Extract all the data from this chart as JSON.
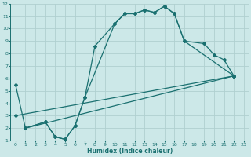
{
  "xlabel": "Humidex (Indice chaleur)",
  "xlim": [
    -0.5,
    23.5
  ],
  "ylim": [
    1,
    12
  ],
  "xticks": [
    0,
    1,
    2,
    3,
    4,
    5,
    6,
    7,
    8,
    9,
    10,
    11,
    12,
    13,
    14,
    15,
    16,
    17,
    18,
    19,
    20,
    21,
    22,
    23
  ],
  "yticks": [
    1,
    2,
    3,
    4,
    5,
    6,
    7,
    8,
    9,
    10,
    11,
    12
  ],
  "bg_color": "#cce8e8",
  "grid_color": "#b0d0d0",
  "line_color": "#1a7070",
  "series": [
    {
      "x": [
        0,
        1,
        3,
        4,
        5,
        6,
        7,
        8,
        10,
        11,
        12,
        13,
        14,
        15,
        16,
        17,
        19,
        20,
        21,
        22
      ],
      "y": [
        5.5,
        2.0,
        2.5,
        1.3,
        1.1,
        2.2,
        4.5,
        8.6,
        10.4,
        11.2,
        11.2,
        11.5,
        11.3,
        11.8,
        11.2,
        9.0,
        8.8,
        7.9,
        7.5,
        6.2
      ]
    },
    {
      "x": [
        1,
        3,
        4,
        5,
        6,
        7,
        10,
        11,
        12,
        13,
        14,
        15,
        16,
        17,
        22
      ],
      "y": [
        2.0,
        2.5,
        1.3,
        1.1,
        2.2,
        4.5,
        10.4,
        11.2,
        11.2,
        11.5,
        11.3,
        11.8,
        11.2,
        9.0,
        6.2
      ]
    },
    {
      "x": [
        1,
        22
      ],
      "y": [
        2.0,
        6.2
      ]
    },
    {
      "x": [
        0,
        22
      ],
      "y": [
        3.0,
        6.2
      ]
    }
  ]
}
